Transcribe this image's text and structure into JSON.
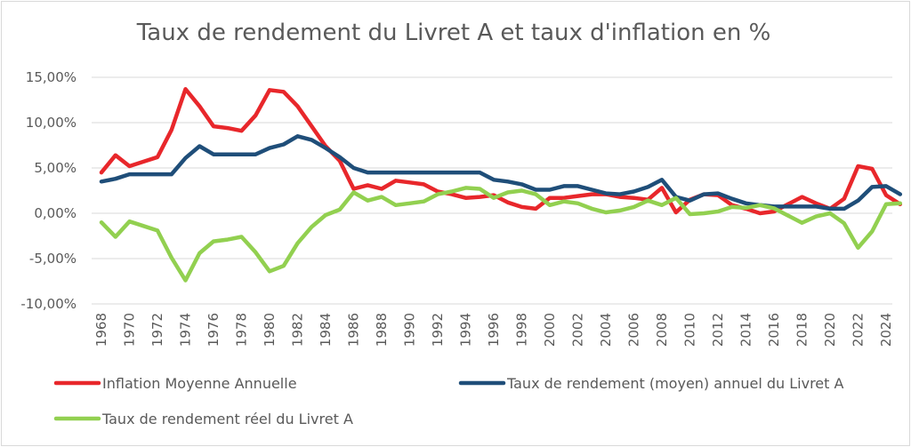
{
  "chart_data": {
    "type": "line",
    "title": "Taux de rendement du Livret A et taux d'inflation en %",
    "xlabel": "",
    "ylabel": "",
    "ylim": [
      -10,
      15
    ],
    "y_ticks": [
      15,
      10,
      5,
      0,
      -5,
      -10
    ],
    "y_tick_labels": [
      "15,00%",
      "10,00%",
      "5,00%",
      "0,00%",
      "-5,00%",
      "-10,00%"
    ],
    "x_tick_labels": [
      "1968",
      "1970",
      "1972",
      "1974",
      "1976",
      "1978",
      "1980",
      "1982",
      "1984",
      "1986",
      "1988",
      "1990",
      "1992",
      "1994",
      "1996",
      "1998",
      "2000",
      "2002",
      "2004",
      "2006",
      "2008",
      "2010",
      "2012",
      "2014",
      "2016",
      "2018",
      "2020",
      "2022",
      "2024"
    ],
    "x": [
      1968,
      1969,
      1970,
      1971,
      1972,
      1973,
      1974,
      1975,
      1976,
      1977,
      1978,
      1979,
      1980,
      1981,
      1982,
      1983,
      1984,
      1985,
      1986,
      1987,
      1988,
      1989,
      1990,
      1991,
      1992,
      1993,
      1994,
      1995,
      1996,
      1997,
      1998,
      1999,
      2000,
      2001,
      2002,
      2003,
      2004,
      2005,
      2006,
      2007,
      2008,
      2009,
      2010,
      2011,
      2012,
      2013,
      2014,
      2015,
      2016,
      2017,
      2018,
      2019,
      2020,
      2021,
      2022,
      2023,
      2024,
      2025
    ],
    "grid": true,
    "legend_position": "bottom",
    "series": [
      {
        "name": "Inflation Moyenne Annuelle",
        "color": "#e8272b",
        "values": [
          4.5,
          6.4,
          5.2,
          5.7,
          6.2,
          9.2,
          13.7,
          11.8,
          9.6,
          9.4,
          9.1,
          10.8,
          13.6,
          13.4,
          11.8,
          9.6,
          7.4,
          5.8,
          2.7,
          3.1,
          2.7,
          3.6,
          3.4,
          3.2,
          2.4,
          2.1,
          1.7,
          1.8,
          2.0,
          1.2,
          0.7,
          0.5,
          1.7,
          1.7,
          1.9,
          2.1,
          2.1,
          1.8,
          1.7,
          1.5,
          2.8,
          0.1,
          1.5,
          2.1,
          2.0,
          0.9,
          0.5,
          0.0,
          0.2,
          1.0,
          1.8,
          1.1,
          0.5,
          1.6,
          5.2,
          4.9,
          2.0,
          1.0
        ]
      },
      {
        "name": "Taux de rendement (moyen) annuel du Livret A",
        "color": "#1f4e79",
        "values": [
          3.5,
          3.8,
          4.3,
          4.3,
          4.3,
          4.3,
          6.1,
          7.4,
          6.5,
          6.5,
          6.5,
          6.5,
          7.2,
          7.6,
          8.5,
          8.1,
          7.2,
          6.2,
          5.0,
          4.5,
          4.5,
          4.5,
          4.5,
          4.5,
          4.5,
          4.5,
          4.5,
          4.5,
          3.7,
          3.5,
          3.2,
          2.6,
          2.6,
          3.0,
          3.0,
          2.6,
          2.2,
          2.1,
          2.4,
          2.9,
          3.7,
          1.8,
          1.4,
          2.1,
          2.2,
          1.6,
          1.1,
          0.9,
          0.75,
          0.75,
          0.75,
          0.75,
          0.5,
          0.5,
          1.4,
          2.9,
          3.0,
          2.1
        ]
      },
      {
        "name": "Taux de rendement réel du Livret A",
        "color": "#92d050",
        "values": [
          -1.0,
          -2.6,
          -0.9,
          -1.4,
          -1.9,
          -4.9,
          -7.4,
          -4.4,
          -3.1,
          -2.9,
          -2.6,
          -4.3,
          -6.4,
          -5.8,
          -3.3,
          -1.5,
          -0.2,
          0.4,
          2.3,
          1.4,
          1.8,
          0.9,
          1.1,
          1.3,
          2.1,
          2.4,
          2.8,
          2.7,
          1.7,
          2.3,
          2.5,
          2.1,
          0.9,
          1.3,
          1.1,
          0.5,
          0.1,
          0.3,
          0.7,
          1.4,
          0.9,
          1.7,
          -0.1,
          0.0,
          0.2,
          0.7,
          0.6,
          0.9,
          0.55,
          -0.25,
          -1.05,
          -0.35,
          0.0,
          -1.1,
          -3.8,
          -2.0,
          1.0,
          1.1
        ]
      }
    ]
  }
}
